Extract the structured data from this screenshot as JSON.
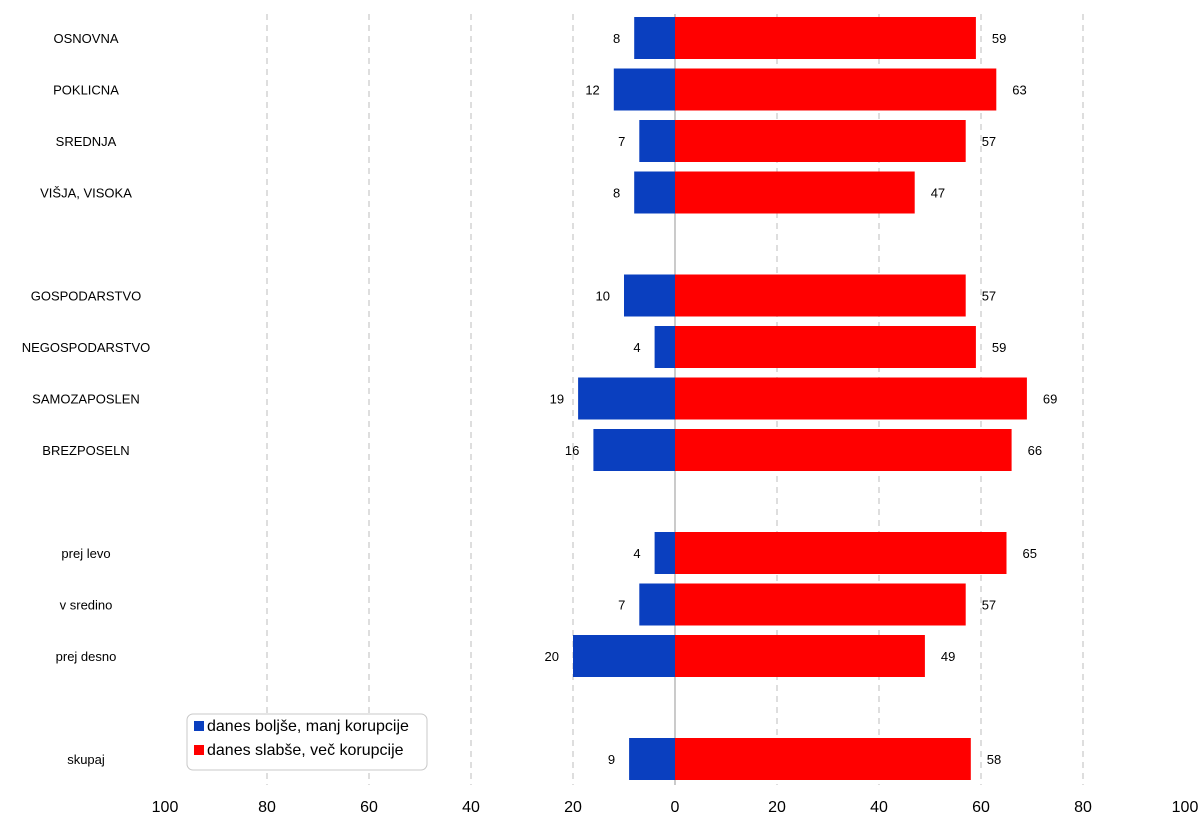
{
  "chart_data": {
    "type": "bar",
    "orientation": "horizontal",
    "diverging": true,
    "categories": [
      "OSNOVNA",
      "POKLICNA",
      "SREDNJA",
      "VIŠJA, VISOKA",
      "",
      "GOSPODARSTVO",
      "NEGOSPODARSTVO",
      "SAMOZAPOSLEN",
      "BREZPOSELN",
      "",
      "prej levo",
      "v sredino",
      "prej desno",
      "",
      "skupaj"
    ],
    "series": [
      {
        "name": "danes boljše, manj korupcije",
        "color": "#0a3fbf",
        "direction": "left",
        "values": [
          8,
          12,
          7,
          8,
          null,
          10,
          4,
          19,
          16,
          null,
          4,
          7,
          20,
          null,
          9
        ]
      },
      {
        "name": "danes slabše, več korupcije",
        "color": "#ff0000",
        "direction": "right",
        "values": [
          59,
          63,
          57,
          47,
          null,
          57,
          59,
          69,
          66,
          null,
          65,
          57,
          49,
          null,
          58
        ]
      }
    ],
    "x_ticks": [
      "100",
      "80",
      "60",
      "40",
      "20",
      "0",
      "20",
      "40",
      "60",
      "80",
      "100"
    ],
    "xlim": [
      -100,
      100
    ],
    "grid": "vertical dashed",
    "legend_position": "bottom-left",
    "title": "",
    "xlabel": "",
    "ylabel": ""
  }
}
